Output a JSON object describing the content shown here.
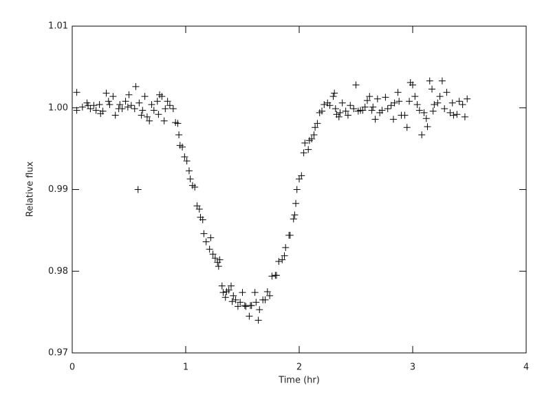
{
  "chart_data": {
    "type": "scatter",
    "xlabel": "Time (hr)",
    "ylabel": "Relative flux",
    "xlim": [
      0,
      4
    ],
    "xticks": [
      0,
      1,
      2,
      3,
      4
    ],
    "ylim": [
      0.97,
      1.01
    ],
    "yticks": [
      0.97,
      0.98,
      0.99,
      {
        "value": 1,
        "label": "1.00"
      },
      1.01
    ],
    "color": "#000000",
    "marker": "+",
    "x": [
      0.04,
      0.04,
      0.09,
      0.13,
      0.14,
      0.16,
      0.19,
      0.21,
      0.24,
      0.25,
      0.27,
      0.3,
      0.32,
      0.33,
      0.36,
      0.38,
      0.41,
      0.42,
      0.44,
      0.47,
      0.49,
      0.5,
      0.52,
      0.55,
      0.56,
      0.58,
      0.59,
      0.61,
      0.62,
      0.64,
      0.66,
      0.68,
      0.7,
      0.72,
      0.75,
      0.76,
      0.77,
      0.79,
      0.81,
      0.82,
      0.84,
      0.86,
      0.89,
      0.91,
      0.93,
      0.94,
      0.95,
      0.97,
      0.99,
      1.01,
      1.03,
      1.04,
      1.06,
      1.08,
      1.1,
      1.12,
      1.13,
      1.15,
      1.16,
      1.18,
      1.21,
      1.22,
      1.24,
      1.26,
      1.28,
      1.29,
      1.3,
      1.32,
      1.33,
      1.35,
      1.36,
      1.38,
      1.4,
      1.41,
      1.42,
      1.44,
      1.46,
      1.48,
      1.5,
      1.52,
      1.53,
      1.56,
      1.57,
      1.58,
      1.61,
      1.62,
      1.64,
      1.65,
      1.68,
      1.7,
      1.72,
      1.74,
      1.76,
      1.79,
      1.8,
      1.82,
      1.85,
      1.87,
      1.88,
      1.91,
      1.92,
      1.95,
      1.96,
      1.97,
      1.98,
      2.0,
      2.02,
      2.04,
      2.05,
      2.08,
      2.09,
      2.11,
      2.13,
      2.14,
      2.16,
      2.18,
      2.2,
      2.22,
      2.25,
      2.27,
      2.3,
      2.31,
      2.32,
      2.33,
      2.35,
      2.36,
      2.38,
      2.41,
      2.43,
      2.45,
      2.48,
      2.5,
      2.52,
      2.54,
      2.56,
      2.58,
      2.6,
      2.62,
      2.64,
      2.65,
      2.67,
      2.69,
      2.71,
      2.73,
      2.76,
      2.78,
      2.81,
      2.83,
      2.84,
      2.87,
      2.88,
      2.9,
      2.93,
      2.95,
      2.97,
      2.98,
      3.0,
      3.02,
      3.04,
      3.06,
      3.08,
      3.1,
      3.12,
      3.13,
      3.15,
      3.17,
      3.18,
      3.19,
      3.22,
      3.24,
      3.26,
      3.28,
      3.3,
      3.33,
      3.35,
      3.36,
      3.39,
      3.41,
      3.44,
      3.46,
      3.48
    ],
    "y": [
      1.0019,
      0.9997,
      1.0001,
      1.0006,
      1.0003,
      0.9999,
      1.0003,
      0.9997,
      1.0004,
      0.9993,
      0.9996,
      1.0018,
      1.0008,
      1.0004,
      1.0014,
      0.9991,
      0.9999,
      1.0004,
      0.9999,
      1.0008,
      1.0001,
      1.0016,
      1.0003,
      0.9999,
      1.0026,
      0.99,
      1.0006,
      0.9991,
      0.9997,
      1.0014,
      0.9989,
      0.9984,
      1.0004,
      0.9997,
      1.0008,
      0.9992,
      1.0016,
      1.0014,
      0.9984,
      0.9999,
      1.0008,
      1.0003,
      0.9999,
      0.9982,
      0.9981,
      0.9967,
      0.9954,
      0.9952,
      0.994,
      0.9935,
      0.9923,
      0.9913,
      0.9905,
      0.9903,
      0.988,
      0.9876,
      0.9866,
      0.9863,
      0.9846,
      0.9836,
      0.9827,
      0.9841,
      0.9821,
      0.9816,
      0.9811,
      0.9806,
      0.9814,
      0.9782,
      0.9774,
      0.9768,
      0.9775,
      0.9777,
      0.9782,
      0.9763,
      0.977,
      0.9765,
      0.9757,
      0.9762,
      0.9774,
      0.9758,
      0.9757,
      0.9745,
      0.9758,
      0.9758,
      0.9774,
      0.9762,
      0.974,
      0.9753,
      0.9765,
      0.9765,
      0.9775,
      0.977,
      0.9794,
      0.9795,
      0.9795,
      0.9812,
      0.9814,
      0.9819,
      0.9829,
      0.9844,
      0.9844,
      0.9864,
      0.9869,
      0.9883,
      0.99,
      0.9913,
      0.9917,
      0.9945,
      0.9957,
      0.9949,
      0.996,
      0.9962,
      0.9967,
      0.9976,
      0.9981,
      0.9994,
      0.9996,
      1.0004,
      1.0006,
      1.0003,
      1.0014,
      1.0018,
      0.9999,
      0.9992,
      0.9989,
      0.9994,
      1.0006,
      0.9996,
      0.9991,
      1.0003,
      0.9999,
      1.0028,
      0.9996,
      0.9997,
      0.9997,
      1.0001,
      1.0009,
      1.0014,
      0.9997,
      1.0001,
      0.9986,
      1.0011,
      0.9994,
      0.9997,
      1.0013,
      0.9999,
      1.0003,
      0.9986,
      1.0006,
      1.0019,
      1.0008,
      0.9991,
      0.9991,
      0.9976,
      1.0008,
      1.0031,
      1.0028,
      1.0014,
      1.0004,
      0.9997,
      0.9967,
      0.9994,
      0.9987,
      0.9977,
      1.0033,
      1.0023,
      0.9996,
      1.0004,
      1.0006,
      1.0014,
      1.0033,
      0.9999,
      1.0019,
      0.9994,
      1.0006,
      0.9991,
      0.9992,
      1.0008,
      1.0004,
      0.9989,
      1.0011
    ]
  }
}
